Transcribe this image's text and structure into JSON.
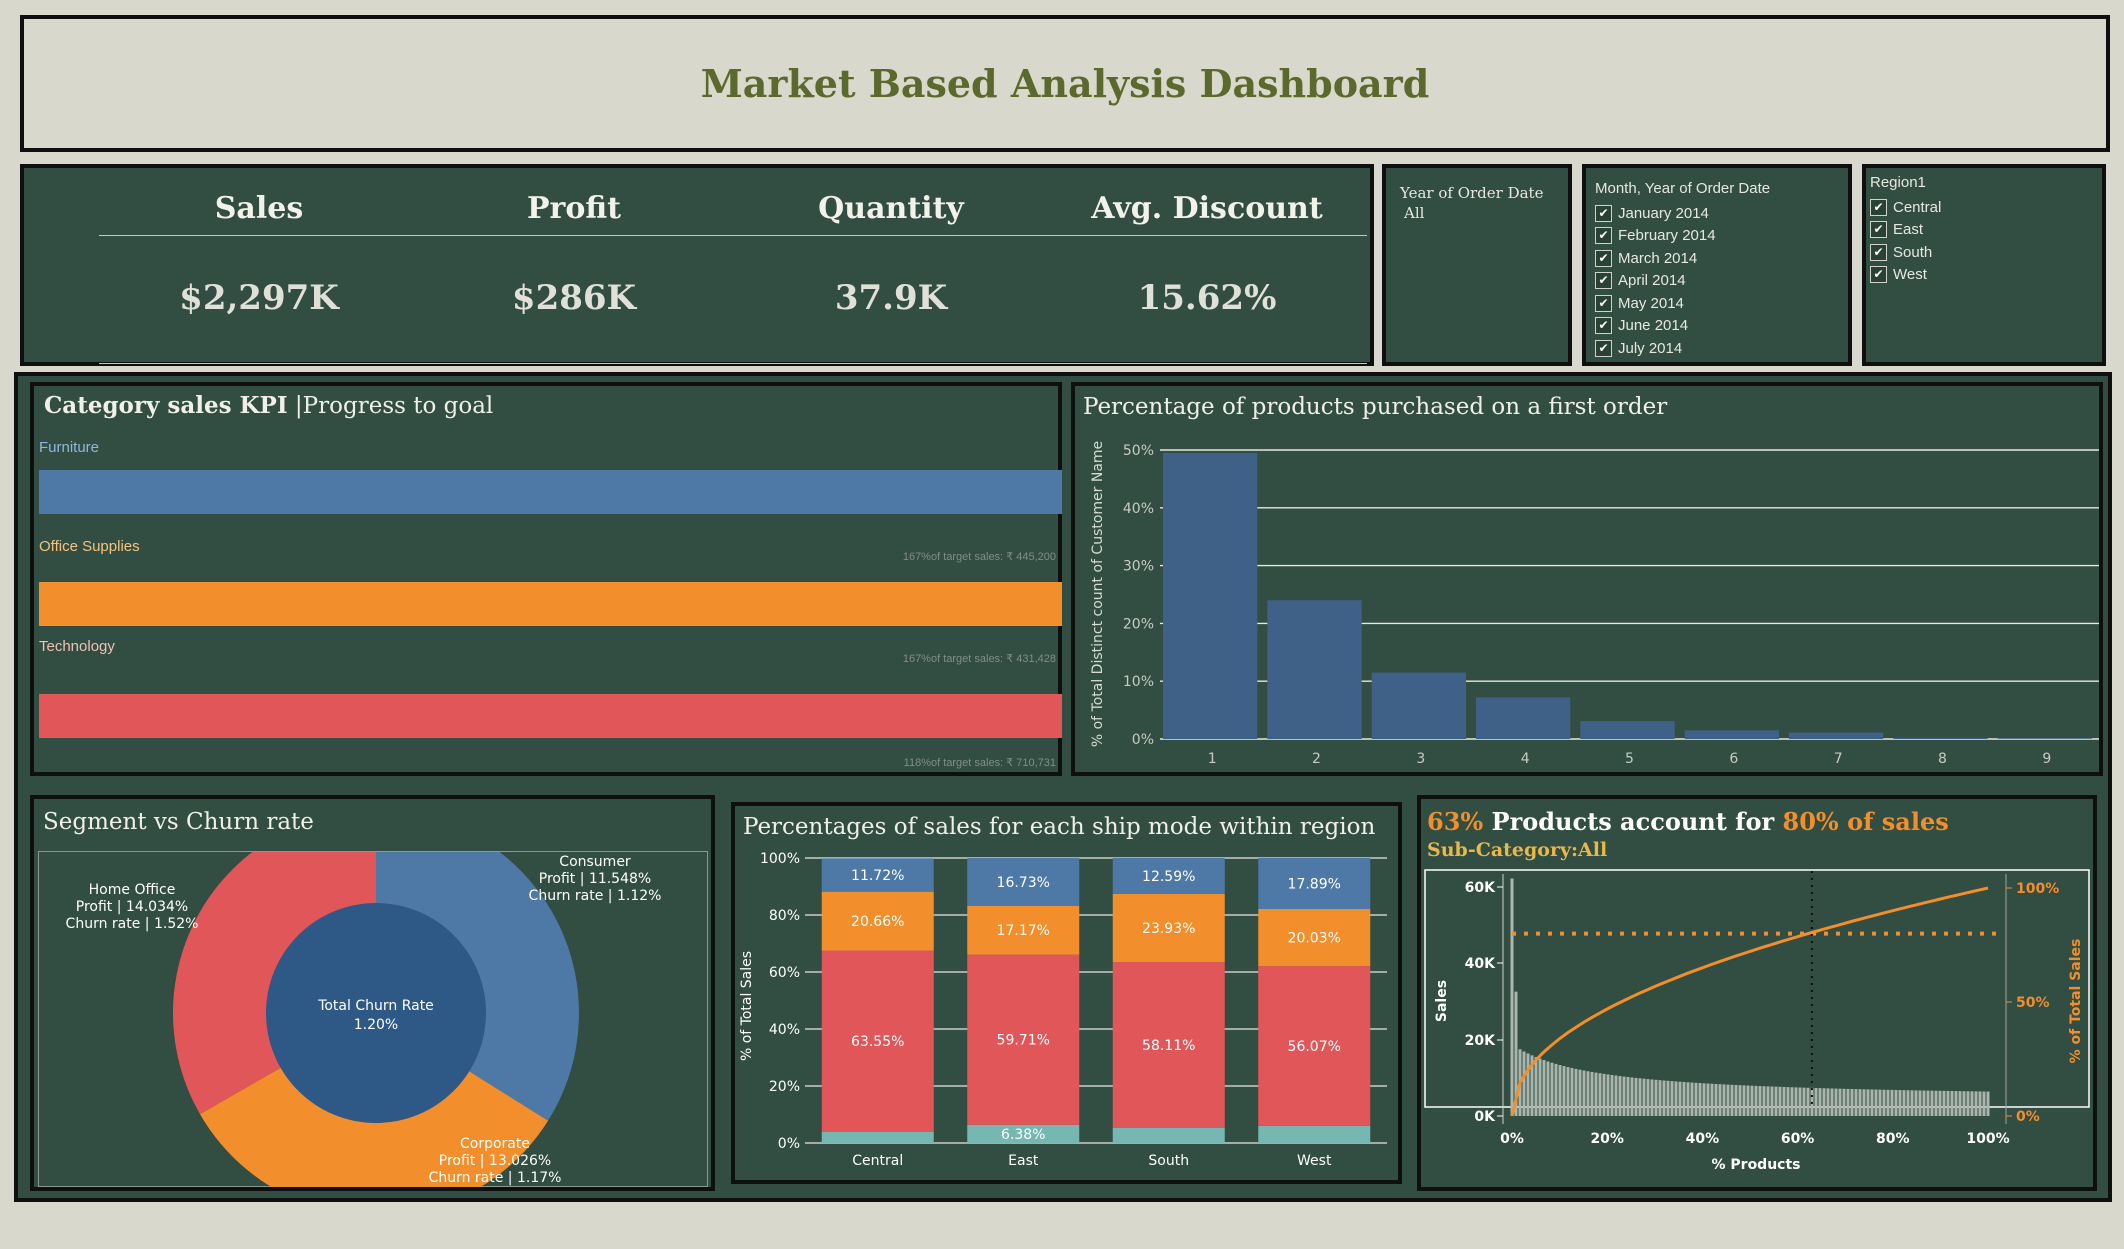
{
  "dashboard": {
    "title": "Market Based Analysis Dashboard"
  },
  "kpis": [
    {
      "label": "Sales",
      "value": "$2,297K"
    },
    {
      "label": "Profit",
      "value": "$286K"
    },
    {
      "label": "Quantity",
      "value": "37.9K"
    },
    {
      "label": "Avg. Discount",
      "value": "15.62%"
    }
  ],
  "filters": {
    "year": {
      "title": "Year of Order Date",
      "value": "All"
    },
    "month": {
      "title": "Month, Year of Order Date",
      "items": [
        "January 2014",
        "February 2014",
        "March 2014",
        "April 2014",
        "May 2014",
        "June 2014",
        "July 2014"
      ]
    },
    "region": {
      "title": "Region1",
      "items": [
        "Central",
        "East",
        "South",
        "West"
      ]
    }
  },
  "category_kpi": {
    "title_bold": "Category sales KPI",
    "title_rest": "|Progress to goal",
    "bars": [
      {
        "name": "Furniture",
        "color": "#4e79a7",
        "label_color": "#8fb8de",
        "target": "167%of target sales: ₹ 445,200",
        "progress": 1.67
      },
      {
        "name": "Office Supplies",
        "color": "#f28e2b",
        "label_color": "#f6c27f",
        "target": "167%of target sales: ₹ 431,428",
        "progress": 1.67
      },
      {
        "name": "Technology",
        "color": "#e15759",
        "label_color": "#f0c0b8",
        "target": "118%of target sales: ₹ 710,731",
        "progress": 1.18
      }
    ]
  },
  "first_order": {
    "title": "Percentage of products purchased on a  first order",
    "chart_data": {
      "type": "bar",
      "categories": [
        "1",
        "2",
        "3",
        "4",
        "5",
        "6",
        "7",
        "8",
        "9"
      ],
      "values": [
        49.5,
        24,
        11.5,
        7.2,
        3.1,
        1.5,
        1.1,
        0.2,
        0.1
      ],
      "ylabel": "% of Total Distinct count of Customer Name",
      "yticks": [
        "0%",
        "10%",
        "20%",
        "30%",
        "40%",
        "50%"
      ],
      "ylim": [
        0,
        50
      ],
      "color": "#3f6188",
      "grid": true
    }
  },
  "segment": {
    "title": "Segment vs Churn rate",
    "center_line1": "Total Churn Rate",
    "center_line2": "1.20%",
    "chart_data": {
      "type": "pie",
      "slices": [
        {
          "name": "Consumer",
          "value": 33.9,
          "color": "#4e79a7",
          "lines": [
            "Consumer",
            "Profit | 11.548%",
            "Churn rate | 1.12%"
          ]
        },
        {
          "name": "Corporate",
          "value": 32.8,
          "color": "#f28e2b",
          "lines": [
            "Corporate",
            "Profit | 13.026%",
            "Churn rate | 1.17%"
          ]
        },
        {
          "name": "Home Office",
          "value": 33.3,
          "color": "#e15759",
          "lines": [
            "Home Office",
            "Profit | 14.034%",
            "Churn rate | 1.52%"
          ]
        }
      ]
    }
  },
  "ship_mode": {
    "title": "Percentages of sales for each ship mode within region",
    "chart_data": {
      "type": "bar",
      "stacked": true,
      "categories": [
        "Central",
        "East",
        "South",
        "West"
      ],
      "series": [
        {
          "values": [
            3.97,
            6.38,
            5.37,
            6.01
          ],
          "color": "#76b7b2",
          "labels": [
            "",
            "6.38%",
            "",
            ""
          ]
        },
        {
          "values": [
            63.55,
            59.71,
            58.11,
            56.07
          ],
          "color": "#e15759",
          "labels": [
            "63.55%",
            "59.71%",
            "58.11%",
            "56.07%"
          ]
        },
        {
          "values": [
            20.66,
            17.17,
            23.93,
            20.03
          ],
          "color": "#f28e2b",
          "labels": [
            "20.66%",
            "17.17%",
            "23.93%",
            "20.03%"
          ]
        },
        {
          "values": [
            11.72,
            16.73,
            12.59,
            17.89
          ],
          "color": "#4e79a7",
          "labels": [
            "11.72%",
            "16.73%",
            "12.59%",
            "17.89%"
          ]
        }
      ],
      "ylabel": "% of Total Sales",
      "yticks": [
        "0%",
        "20%",
        "40%",
        "60%",
        "80%",
        "100%"
      ],
      "ylim": [
        0,
        100
      ]
    }
  },
  "pareto": {
    "title_pct1": "63%",
    "title_mid": " Products account for ",
    "title_pct2": "80% of sales",
    "subtitle": "Sub-Category:All",
    "chart_data": {
      "type": "line",
      "xlabel": "% Products",
      "ylabel_left": "Sales",
      "ylabel_right": "% of Total Sales",
      "xticks": [
        "0%",
        "20%",
        "40%",
        "60%",
        "80%",
        "100%"
      ],
      "yticks_left": [
        "0K",
        "20K",
        "40K",
        "60K"
      ],
      "yticks_right": [
        "0%",
        "50%",
        "100%"
      ],
      "reference_x": 63,
      "reference_y": 80,
      "accent": "#f28e2b"
    }
  }
}
